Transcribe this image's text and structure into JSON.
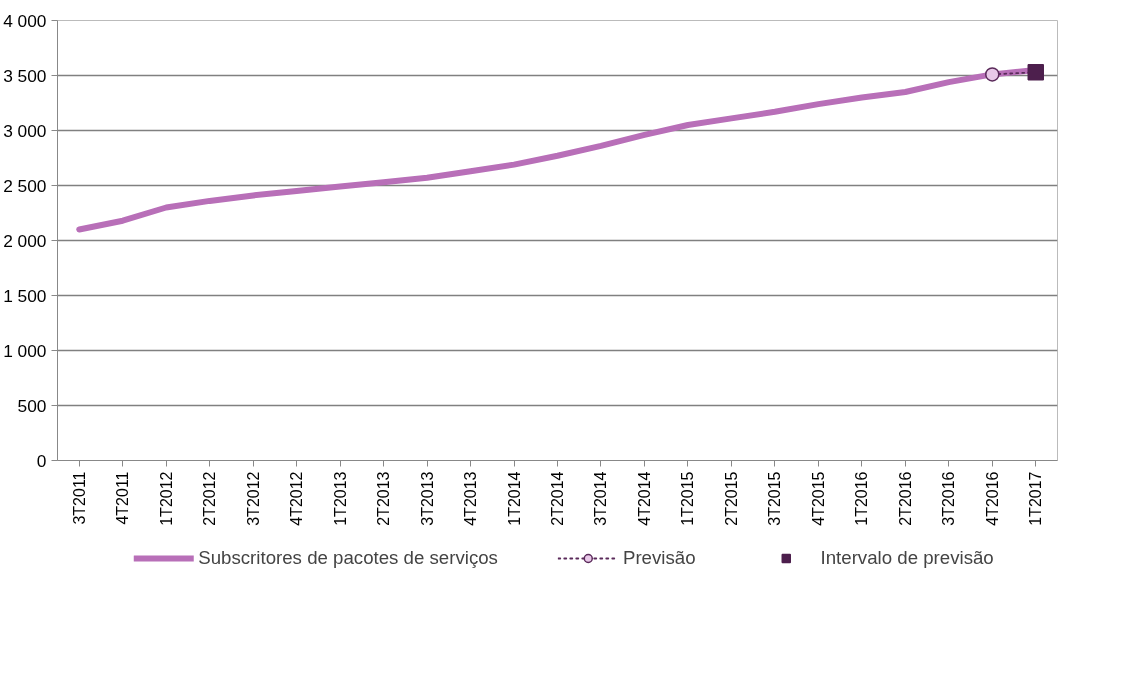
{
  "chart_data": {
    "type": "line",
    "categories": [
      "3T2011",
      "4T2011",
      "1T2012",
      "2T2012",
      "3T2012",
      "4T2012",
      "1T2013",
      "2T2013",
      "3T2013",
      "4T2013",
      "1T2014",
      "2T2014",
      "3T2014",
      "4T2014",
      "1T2015",
      "2T2015",
      "3T2015",
      "4T2015",
      "1T2016",
      "2T2016",
      "3T2016",
      "4T2016",
      "1T2017"
    ],
    "series": [
      {
        "name": "Subscritores de pacotes de serviços",
        "color": "#b86fb8",
        "values": [
          2100,
          2180,
          2300,
          2360,
          2410,
          2450,
          2490,
          2530,
          2570,
          2630,
          2690,
          2770,
          2860,
          2960,
          3050,
          3110,
          3170,
          3240,
          3300,
          3350,
          3440,
          3510,
          3550
        ],
        "marker": "none",
        "line_style": "solid"
      },
      {
        "name": "Previsão",
        "color": "#5a2a5a",
        "values": [
          null,
          null,
          null,
          null,
          null,
          null,
          null,
          null,
          null,
          null,
          null,
          null,
          null,
          null,
          null,
          null,
          null,
          null,
          null,
          null,
          null,
          3510,
          3530
        ],
        "marker": "circle",
        "line_style": "dotted"
      },
      {
        "name": "Intervalo de previsão",
        "type": "scatter",
        "color": "#4d1f4d",
        "values": [
          null,
          null,
          null,
          null,
          null,
          null,
          null,
          null,
          null,
          null,
          null,
          null,
          null,
          null,
          null,
          null,
          null,
          null,
          null,
          null,
          null,
          null,
          3530
        ],
        "marker": "square"
      }
    ],
    "ylim": [
      0,
      4000
    ],
    "yticks": [
      0,
      500,
      {
        "value": 1000,
        "label": "1 000"
      },
      {
        "value": 1500,
        "label": "1 500"
      },
      {
        "value": 2000,
        "label": "2 000"
      },
      {
        "value": 2500,
        "label": "2 500"
      },
      {
        "value": 3000,
        "label": "3 000"
      },
      {
        "value": 3500,
        "label": "3 500"
      },
      {
        "value": 4000,
        "label": "4 000"
      }
    ],
    "grid": "y",
    "legend": "bottom"
  }
}
